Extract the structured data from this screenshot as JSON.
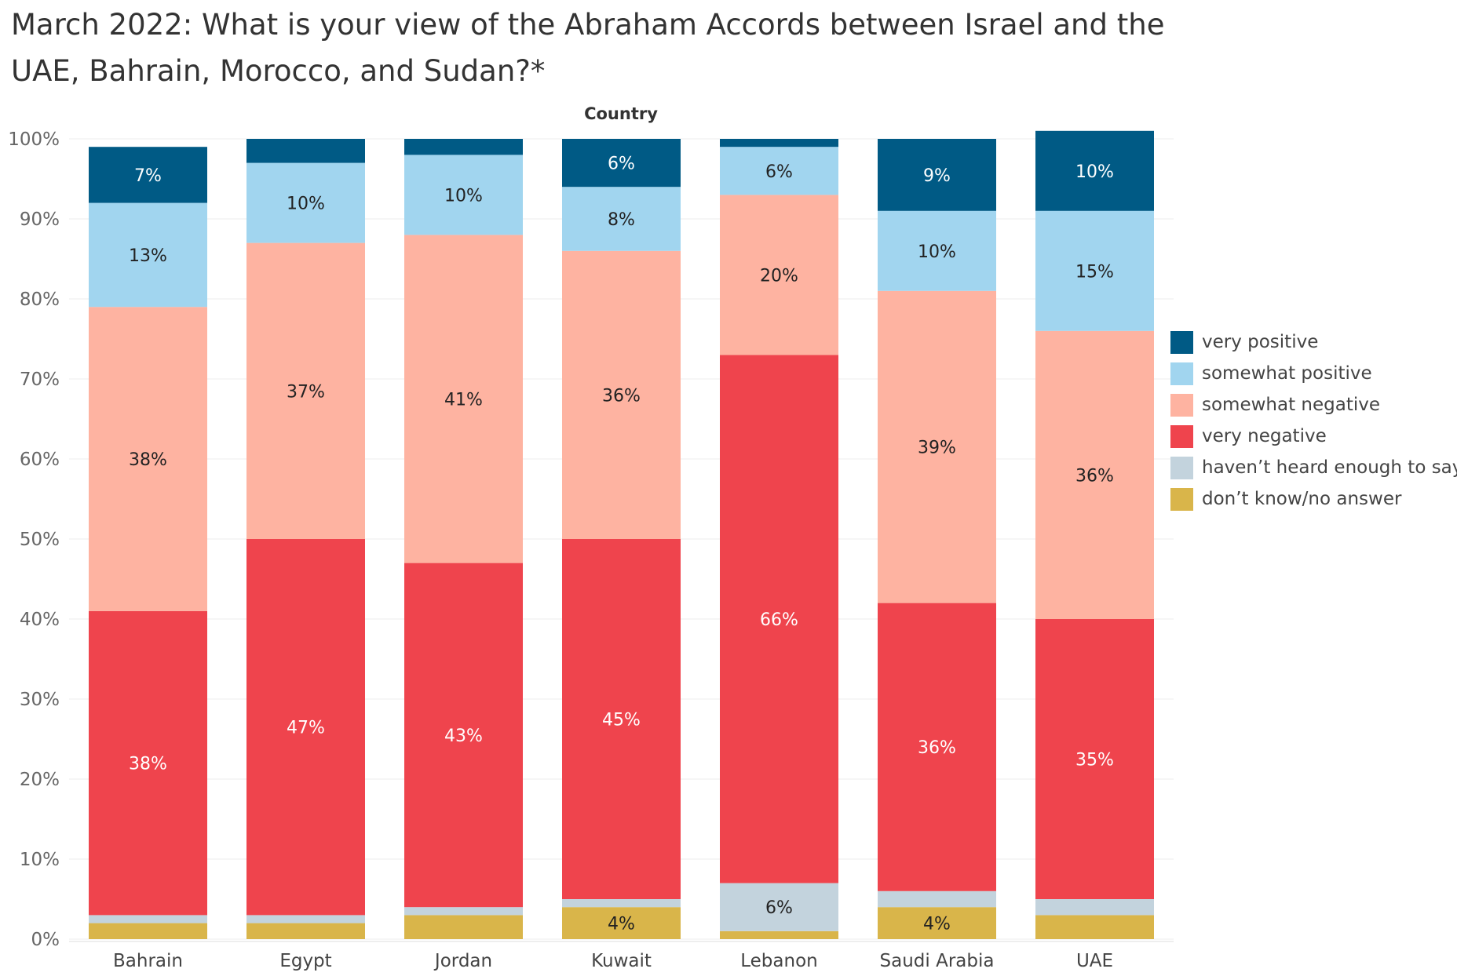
{
  "title": "March 2022: What is your view of the Abraham Accords between Israel and the UAE, Bahrain, Morocco, and Sudan?*",
  "chart_data": {
    "type": "bar",
    "stacked": true,
    "title": "March 2022: What is your view of the Abraham Accords between Israel and the UAE, Bahrain, Morocco, and Sudan?*",
    "facet_label": "Country",
    "categories": [
      "Bahrain",
      "Egypt",
      "Jordan",
      "Kuwait",
      "Lebanon",
      "Saudi Arabia",
      "UAE"
    ],
    "ylim": [
      0,
      100
    ],
    "yticks": [
      "0%",
      "10%",
      "20%",
      "30%",
      "40%",
      "50%",
      "60%",
      "70%",
      "80%",
      "90%",
      "100%"
    ],
    "grid": true,
    "legend_position": "right",
    "series": [
      {
        "name": "don’t know/no answer",
        "color": "#D9B54A",
        "values": [
          2,
          2,
          3,
          4,
          1,
          4,
          3
        ],
        "labels": [
          "",
          "",
          "",
          "4%",
          "",
          "4%",
          ""
        ]
      },
      {
        "name": "haven’t heard enough to say",
        "color": "#C3D3DD",
        "values": [
          1,
          1,
          1,
          1,
          6,
          2,
          2
        ],
        "labels": [
          "",
          "",
          "",
          "",
          "6%",
          "",
          ""
        ]
      },
      {
        "name": "very negative",
        "color": "#EF444D",
        "values": [
          38,
          47,
          43,
          45,
          66,
          36,
          35
        ],
        "labels": [
          "38%",
          "47%",
          "43%",
          "45%",
          "66%",
          "36%",
          "35%"
        ]
      },
      {
        "name": "somewhat negative",
        "color": "#FEB3A1",
        "values": [
          38,
          37,
          41,
          36,
          20,
          39,
          36
        ],
        "labels": [
          "38%",
          "37%",
          "41%",
          "36%",
          "20%",
          "39%",
          "36%"
        ]
      },
      {
        "name": "somewhat positive",
        "color": "#A1D5EF",
        "values": [
          13,
          10,
          10,
          8,
          6,
          10,
          15
        ],
        "labels": [
          "13%",
          "10%",
          "10%",
          "8%",
          "6%",
          "10%",
          "15%"
        ]
      },
      {
        "name": "very positive",
        "color": "#005A85",
        "values": [
          7,
          3,
          2,
          6,
          1,
          9,
          10
        ],
        "labels": [
          "7%",
          "",
          "",
          "6%",
          "",
          "9%",
          "10%"
        ]
      }
    ],
    "label_colors": {
      "very positive": "#ffffff",
      "somewhat positive": "#222222",
      "somewhat negative": "#222222",
      "very negative": "#ffffff",
      "haven’t heard enough to say": "#222222",
      "don’t know/no answer": "#222222"
    },
    "legend_order": [
      "very positive",
      "somewhat positive",
      "somewhat negative",
      "very negative",
      "haven’t heard enough to say",
      "don’t know/no answer"
    ]
  }
}
